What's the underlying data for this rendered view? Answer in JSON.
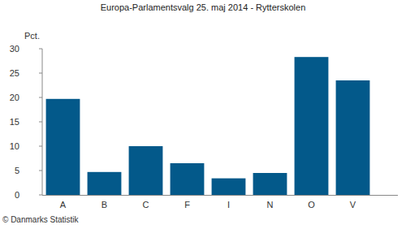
{
  "chart_data": {
    "type": "bar",
    "title": "Europa-Parlamentsvalg 25. maj 2014 - Rytterskolen",
    "ylabel": "Pct.",
    "categories": [
      "A",
      "B",
      "C",
      "F",
      "I",
      "N",
      "O",
      "V"
    ],
    "values": [
      19.7,
      4.7,
      10.0,
      6.5,
      3.4,
      4.5,
      28.3,
      23.5
    ],
    "color": "#03598a",
    "ylim": [
      0,
      30
    ],
    "yticks": [
      0,
      5,
      10,
      15,
      20,
      25,
      30
    ],
    "grid": false,
    "annotations": [
      "© Danmarks Statistik"
    ]
  }
}
